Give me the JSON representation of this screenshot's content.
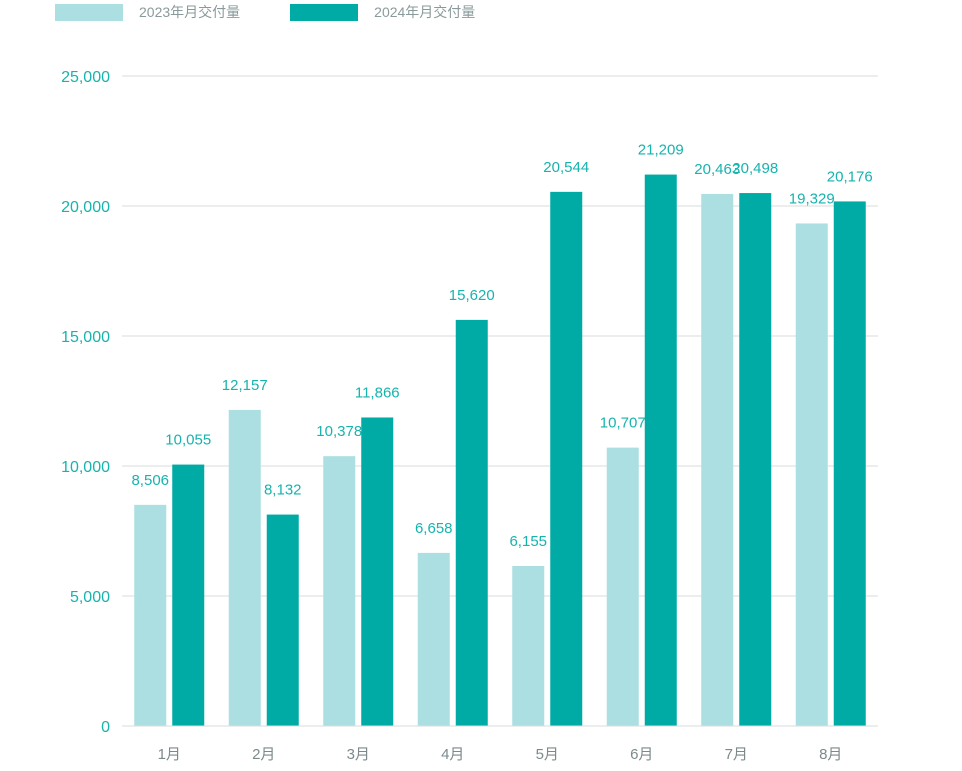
{
  "colors": {
    "series_2023": "#acdfe1",
    "series_2024": "#00aba6",
    "text": "#17b3ad",
    "category_text": "#7c8a8c",
    "grid": "#d8dcdc"
  },
  "chart_data": {
    "type": "bar",
    "title": "",
    "xlabel": "",
    "ylabel": "",
    "categories": [
      "1月",
      "2月",
      "3月",
      "4月",
      "5月",
      "6月",
      "7月",
      "8月"
    ],
    "series": [
      {
        "name": "2023年月交付量",
        "values": [
          8506,
          12157,
          10378,
          6658,
          6155,
          10707,
          20463,
          19329
        ],
        "labels": [
          "8,506",
          "12,157",
          "10,378",
          "6,658",
          "6,155",
          "10,707",
          "20,463",
          "19,329"
        ]
      },
      {
        "name": "2024年月交付量",
        "values": [
          10055,
          8132,
          11866,
          15620,
          20544,
          21209,
          20498,
          20176
        ],
        "labels": [
          "10,055",
          "8,132",
          "11,866",
          "15,620",
          "20,544",
          "21,209",
          "20,498",
          "20,176"
        ]
      }
    ],
    "ylim": [
      0,
      25000
    ],
    "yticks": [
      0,
      5000,
      10000,
      15000,
      20000,
      25000
    ],
    "ytick_labels": [
      "0",
      "5,000",
      "10,000",
      "15,000",
      "20,000",
      "25,000"
    ],
    "grid": true,
    "legend_position": "top-left"
  }
}
